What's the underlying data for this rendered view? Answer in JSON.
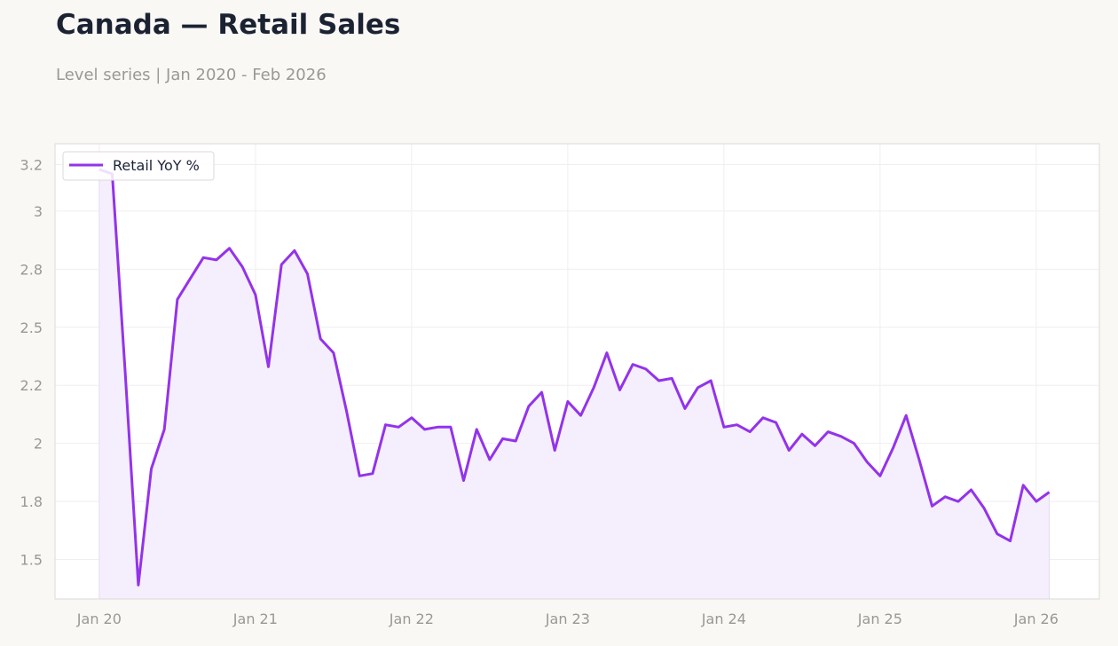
{
  "header": {
    "title": "Canada — Retail Sales",
    "subtitle": "Level series | Jan 2020 - Feb 2026"
  },
  "colors": {
    "line": "#9333ea",
    "fill": "#f4eefd",
    "grid": "#f0eef0",
    "frame": "#dcdad6"
  },
  "chart_data": {
    "type": "line",
    "title": "Canada — Retail Sales",
    "subtitle": "Level series | Jan 2020 - Feb 2026",
    "xlabel": "",
    "ylabel": "",
    "grid": true,
    "legend_position": "top-left",
    "x_start": "2020-01",
    "x_end": "2026-02",
    "xlim": [
      "2019-10",
      "2026-06"
    ],
    "ylim": [
      1.33,
      3.29
    ],
    "x_tick_labels": [
      "Jan 20",
      "Jan 21",
      "Jan 22",
      "Jan 23",
      "Jan 24",
      "Jan 25",
      "Jan 26"
    ],
    "y_ticks": [
      1.5,
      1.75,
      2.0,
      2.25,
      2.5,
      2.75,
      3.0,
      3.2
    ],
    "y_tick_labels": [
      "1.5",
      "1.8",
      "2",
      "2.2",
      "2.5",
      "2.8",
      "3",
      "3.2"
    ],
    "series": [
      {
        "name": "Retail YoY %",
        "x": [
          "2020-01",
          "2020-02",
          "2020-03",
          "2020-04",
          "2020-05",
          "2020-06",
          "2020-07",
          "2020-08",
          "2020-09",
          "2020-10",
          "2020-11",
          "2020-12",
          "2021-01",
          "2021-02",
          "2021-03",
          "2021-04",
          "2021-05",
          "2021-06",
          "2021-07",
          "2021-08",
          "2021-09",
          "2021-10",
          "2021-11",
          "2021-12",
          "2022-01",
          "2022-02",
          "2022-03",
          "2022-04",
          "2022-05",
          "2022-06",
          "2022-07",
          "2022-08",
          "2022-09",
          "2022-10",
          "2022-11",
          "2022-12",
          "2023-01",
          "2023-02",
          "2023-03",
          "2023-04",
          "2023-05",
          "2023-06",
          "2023-07",
          "2023-08",
          "2023-09",
          "2023-10",
          "2023-11",
          "2023-12",
          "2024-01",
          "2024-02",
          "2024-03",
          "2024-04",
          "2024-05",
          "2024-06",
          "2024-07",
          "2024-08",
          "2024-09",
          "2024-10",
          "2024-11",
          "2024-12",
          "2025-01",
          "2025-02",
          "2025-03",
          "2025-04",
          "2025-05",
          "2025-06",
          "2025-07",
          "2025-08",
          "2025-09",
          "2025-10",
          "2025-11",
          "2025-12",
          "2026-01",
          "2026-02"
        ],
        "values": [
          3.18,
          3.16,
          2.3,
          1.39,
          1.89,
          2.06,
          2.62,
          2.71,
          2.8,
          2.79,
          2.84,
          2.76,
          2.64,
          2.33,
          2.77,
          2.83,
          2.73,
          2.45,
          2.39,
          2.14,
          1.86,
          1.87,
          2.08,
          2.07,
          2.11,
          2.06,
          2.07,
          2.07,
          1.84,
          2.06,
          1.93,
          2.02,
          2.01,
          2.16,
          2.22,
          1.97,
          2.18,
          2.12,
          2.24,
          2.39,
          2.23,
          2.34,
          2.32,
          2.27,
          2.28,
          2.15,
          2.24,
          2.27,
          2.07,
          2.08,
          2.05,
          2.11,
          2.09,
          1.97,
          2.04,
          1.99,
          2.05,
          2.03,
          2.0,
          1.92,
          1.86,
          1.98,
          2.12,
          1.93,
          1.73,
          1.77,
          1.75,
          1.8,
          1.72,
          1.61,
          1.58,
          1.82,
          1.75,
          1.79
        ]
      }
    ]
  }
}
